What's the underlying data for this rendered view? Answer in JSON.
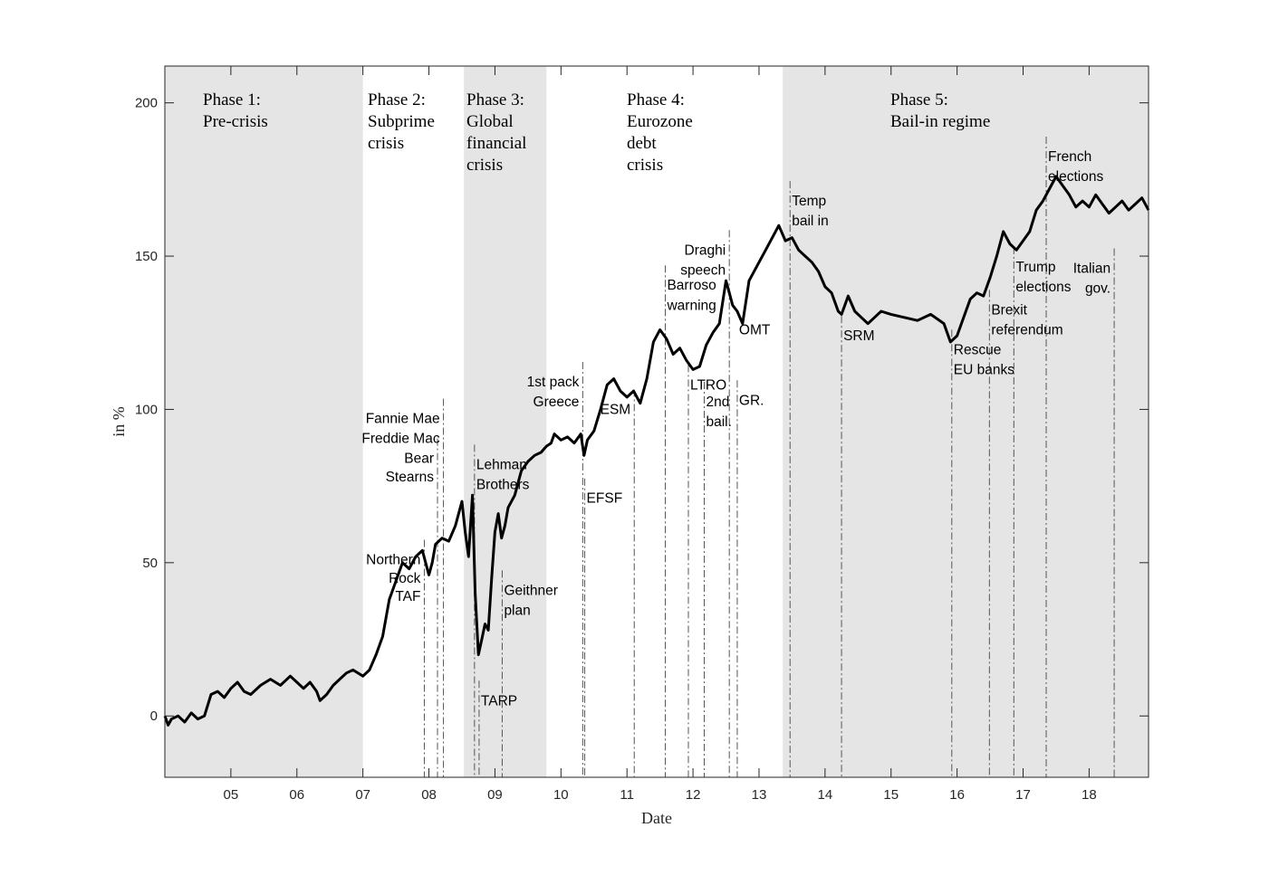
{
  "chart_data": {
    "type": "line",
    "title": "",
    "xlabel": "Date",
    "ylabel": "in %",
    "xlim": [
      2004.0,
      2018.9
    ],
    "ylim": [
      -20,
      212
    ],
    "x_ticks": [
      {
        "value": 2005,
        "label": "05"
      },
      {
        "value": 2006,
        "label": "06"
      },
      {
        "value": 2007,
        "label": "07"
      },
      {
        "value": 2008,
        "label": "08"
      },
      {
        "value": 2009,
        "label": "09"
      },
      {
        "value": 2010,
        "label": "10"
      },
      {
        "value": 2011,
        "label": "11"
      },
      {
        "value": 2012,
        "label": "12"
      },
      {
        "value": 2013,
        "label": "13"
      },
      {
        "value": 2014,
        "label": "14"
      },
      {
        "value": 2015,
        "label": "15"
      },
      {
        "value": 2016,
        "label": "16"
      },
      {
        "value": 2017,
        "label": "17"
      },
      {
        "value": 2018,
        "label": "18"
      }
    ],
    "y_ticks": [
      {
        "value": 0,
        "label": "0"
      },
      {
        "value": 50,
        "label": "50"
      },
      {
        "value": 100,
        "label": "100"
      },
      {
        "value": 150,
        "label": "150"
      },
      {
        "value": 200,
        "label": "200"
      }
    ],
    "grid": false,
    "legend": "none",
    "colors": {
      "line": "#000000",
      "shade": "#e5e5e5",
      "event_line": "#555555"
    },
    "phases": [
      {
        "start": 2004.0,
        "end": 2007.0,
        "shaded": true,
        "label": [
          "Phase 1:",
          "Pre-crisis"
        ]
      },
      {
        "start": 2007.0,
        "end": 2008.53,
        "shaded": false,
        "label": [
          "Phase 2:",
          "Subprime",
          "crisis"
        ]
      },
      {
        "start": 2008.53,
        "end": 2009.78,
        "shaded": true,
        "label": [
          "Phase 3:",
          "Global",
          "financial",
          "crisis"
        ]
      },
      {
        "start": 2009.78,
        "end": 2013.36,
        "shaded": false,
        "label": [
          "Phase 4:",
          "Eurozone",
          "debt",
          "crisis"
        ]
      },
      {
        "start": 2013.36,
        "end": 2018.9,
        "shaded": true,
        "label": [
          "Phase 5:",
          "Bail-in regime"
        ]
      }
    ],
    "events": [
      {
        "date": 2007.93,
        "label": [
          "Northern",
          "Rock",
          "TAF"
        ],
        "label_y": [
          51,
          45,
          39
        ],
        "align": "end"
      },
      {
        "date": 2008.13,
        "label": [
          "Bear",
          "Stearns"
        ],
        "label_y": [
          84,
          78
        ],
        "align": "end"
      },
      {
        "date": 2008.22,
        "label": [
          "Fannie Mae",
          "Freddie Mac"
        ],
        "label_y": [
          97,
          90.5
        ],
        "align": "end"
      },
      {
        "date": 2008.69,
        "label": [
          "Lehman",
          "Brothers"
        ],
        "label_y": [
          82,
          75.5
        ],
        "align": "start"
      },
      {
        "date": 2008.76,
        "label": [
          "TARP"
        ],
        "label_y": [
          5
        ],
        "align": "start"
      },
      {
        "date": 2009.11,
        "label": [
          "Geithner",
          "plan"
        ],
        "label_y": [
          41,
          34.5
        ],
        "align": "start"
      },
      {
        "date": 2010.33,
        "label": [
          "1st pack",
          "Greece"
        ],
        "label_y": [
          109,
          102.5
        ],
        "align": "end"
      },
      {
        "date": 2010.36,
        "label": [
          "EFSF"
        ],
        "label_y": [
          71
        ],
        "align": "start"
      },
      {
        "date": 2011.11,
        "label": [
          "ESM"
        ],
        "label_y": [
          100
        ],
        "align": "end"
      },
      {
        "date": 2011.58,
        "label": [
          "Barroso",
          "warning"
        ],
        "label_y": [
          140.5,
          134
        ],
        "align": "start"
      },
      {
        "date": 2011.93,
        "label": [
          "LTRO"
        ],
        "label_y": [
          108
        ],
        "align": "start"
      },
      {
        "date": 2012.17,
        "label": [
          "2nd",
          "bail."
        ],
        "label_y": [
          102.5,
          96
        ],
        "align": "start"
      },
      {
        "date": 2012.55,
        "label": [
          "Draghi",
          "speech"
        ],
        "label_y": [
          152,
          145.5
        ],
        "align": "end"
      },
      {
        "date": 2012.67,
        "label": [
          "GR."
        ],
        "label_y": [
          103
        ],
        "align": "start"
      },
      {
        "date": 2012.67,
        "label": [
          "OMT"
        ],
        "label_y": [
          126
        ],
        "align": "start"
      },
      {
        "date": 2013.47,
        "label": [
          "Temp",
          "bail in"
        ],
        "label_y": [
          168,
          161.5
        ],
        "align": "start"
      },
      {
        "date": 2014.25,
        "label": [
          "SRM"
        ],
        "label_y": [
          124
        ],
        "align": "start"
      },
      {
        "date": 2015.92,
        "label": [
          "Rescue",
          "EU banks"
        ],
        "label_y": [
          119.5,
          113
        ],
        "align": "start"
      },
      {
        "date": 2016.49,
        "label": [
          "Brexit",
          "referendum"
        ],
        "label_y": [
          132.5,
          126
        ],
        "align": "start"
      },
      {
        "date": 2016.86,
        "label": [
          "Trump",
          "elections"
        ],
        "label_y": [
          146.5,
          140
        ],
        "align": "start"
      },
      {
        "date": 2017.35,
        "label": [
          "French",
          "elections"
        ],
        "label_y": [
          182.5,
          176
        ],
        "align": "start"
      },
      {
        "date": 2018.38,
        "label": [
          "Italian",
          "gov."
        ],
        "label_y": [
          146,
          139.5
        ],
        "align": "end"
      }
    ],
    "series": [
      {
        "x": [
          2004.0,
          2004.05,
          2004.1,
          2004.2,
          2004.3,
          2004.4,
          2004.5,
          2004.6,
          2004.7,
          2004.8,
          2004.9,
          2005.0,
          2005.1,
          2005.2,
          2005.3,
          2005.45,
          2005.6,
          2005.75,
          2005.9,
          2006.0,
          2006.1,
          2006.2,
          2006.3,
          2006.35,
          2006.45,
          2006.55,
          2006.65,
          2006.75,
          2006.85,
          2007.0,
          2007.1,
          2007.2,
          2007.3,
          2007.4,
          2007.5,
          2007.6,
          2007.7,
          2007.8,
          2007.9,
          2008.0,
          2008.05,
          2008.1,
          2008.2,
          2008.3,
          2008.4,
          2008.5,
          2008.55,
          2008.6,
          2008.66,
          2008.7,
          2008.75,
          2008.8,
          2008.85,
          2008.9,
          2008.95,
          2009.0,
          2009.05,
          2009.1,
          2009.15,
          2009.2,
          2009.3,
          2009.4,
          2009.5,
          2009.6,
          2009.7,
          2009.78,
          2009.85,
          2009.9,
          2010.0,
          2010.1,
          2010.2,
          2010.3,
          2010.35,
          2010.4,
          2010.5,
          2010.6,
          2010.7,
          2010.8,
          2010.9,
          2011.0,
          2011.1,
          2011.2,
          2011.3,
          2011.4,
          2011.5,
          2011.6,
          2011.7,
          2011.8,
          2011.9,
          2012.0,
          2012.1,
          2012.2,
          2012.3,
          2012.4,
          2012.5,
          2012.55,
          2012.6,
          2012.67,
          2012.75,
          2012.85,
          2013.0,
          2013.1,
          2013.2,
          2013.3,
          2013.4,
          2013.5,
          2013.6,
          2013.7,
          2013.8,
          2013.9,
          2014.0,
          2014.1,
          2014.2,
          2014.25,
          2014.35,
          2014.45,
          2014.55,
          2014.65,
          2014.75,
          2014.85,
          2015.0,
          2015.2,
          2015.4,
          2015.6,
          2015.8,
          2015.9,
          2016.0,
          2016.1,
          2016.2,
          2016.3,
          2016.4,
          2016.5,
          2016.6,
          2016.7,
          2016.8,
          2016.9,
          2017.0,
          2017.1,
          2017.2,
          2017.3,
          2017.4,
          2017.5,
          2017.6,
          2017.7,
          2017.8,
          2017.9,
          2018.0,
          2018.1,
          2018.2,
          2018.3,
          2018.4,
          2018.5,
          2018.6,
          2018.7,
          2018.8,
          2018.9
        ],
        "values": [
          0,
          -3,
          -1,
          0,
          -2,
          1,
          -1,
          0,
          7,
          8,
          6,
          9,
          11,
          8,
          7,
          10,
          12,
          10,
          13,
          11,
          9,
          11,
          8,
          5,
          7,
          10,
          12,
          14,
          15,
          13,
          15,
          20,
          26,
          38,
          44,
          50,
          48,
          52,
          54,
          46,
          50,
          56,
          58,
          57,
          62,
          70,
          60,
          52,
          72,
          40,
          20,
          25,
          30,
          28,
          45,
          60,
          66,
          58,
          62,
          68,
          72,
          80,
          83,
          85,
          86,
          88,
          89,
          92,
          90,
          91,
          89,
          92,
          85,
          90,
          93,
          100,
          108,
          110,
          106,
          104,
          106,
          102,
          110,
          122,
          126,
          123,
          118,
          120,
          116,
          113,
          114,
          121,
          125,
          128,
          142,
          138,
          134,
          132,
          128,
          142,
          148,
          152,
          156,
          160,
          155,
          156,
          152,
          150,
          148,
          145,
          140,
          138,
          132,
          131,
          137,
          132,
          130,
          128,
          130,
          132,
          131,
          130,
          129,
          131,
          128,
          122,
          124,
          130,
          136,
          138,
          137,
          143,
          150,
          158,
          154,
          152,
          155,
          158,
          165,
          168,
          172,
          176,
          173,
          170,
          166,
          168,
          166,
          170,
          167,
          164,
          166,
          168,
          165,
          167,
          169,
          165
        ]
      }
    ]
  }
}
